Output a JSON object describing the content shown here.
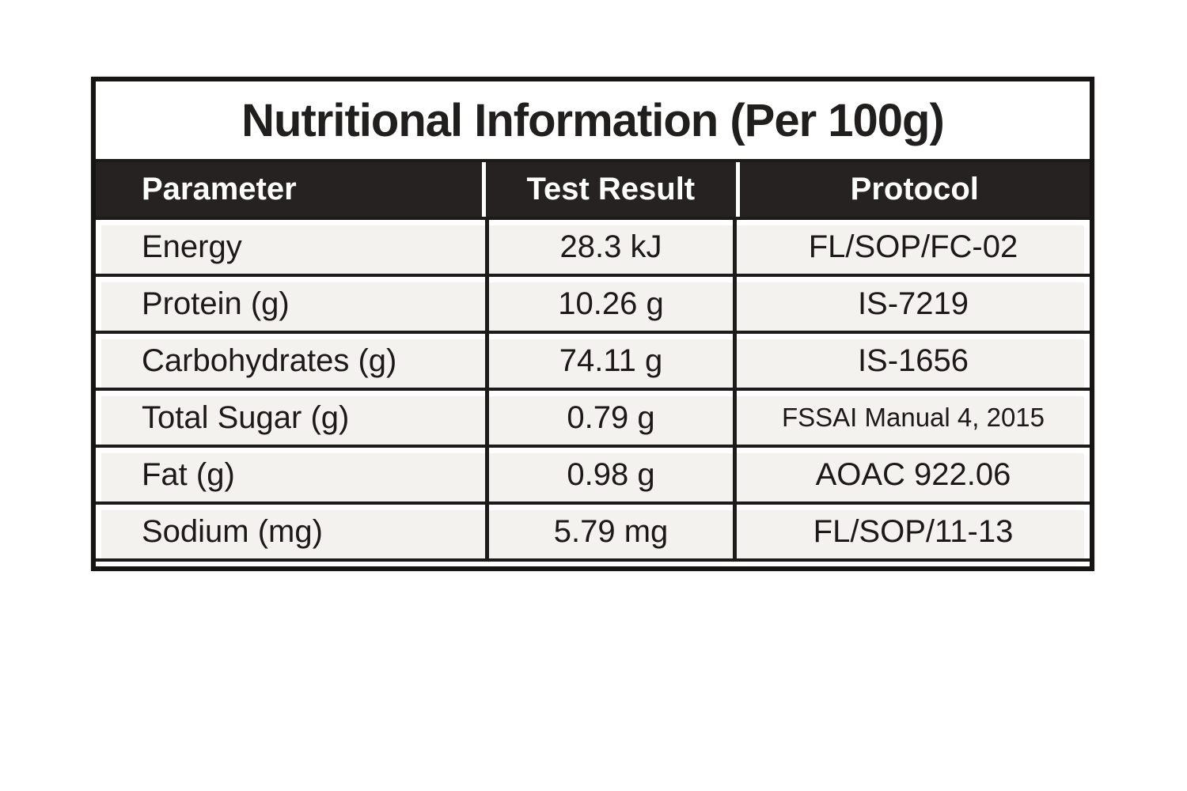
{
  "title": "Nutritional Information (Per 100g)",
  "table": {
    "headers": [
      "Parameter",
      "Test Result",
      "Protocol"
    ],
    "rows": [
      {
        "parameter": "Energy",
        "result": "28.3 kJ",
        "protocol": "FL/SOP/FC-02"
      },
      {
        "parameter": "Protein (g)",
        "result": "10.26 g",
        "protocol": "IS-7219"
      },
      {
        "parameter": "Carbohydrates (g)",
        "result": "74.11 g",
        "protocol": "IS-1656"
      },
      {
        "parameter": "Total Sugar (g)",
        "result": "0.79 g",
        "protocol": "FSSAI Manual 4, 2015"
      },
      {
        "parameter": "Fat (g)",
        "result": "0.98 g",
        "protocol": "AOAC 922.06"
      },
      {
        "parameter": "Sodium (mg)",
        "result": "5.79 mg",
        "protocol": "FL/SOP/11-13"
      }
    ]
  },
  "colors": {
    "header_background": "#262222",
    "header_text": "#ffffff",
    "row_background": "#f4f2ee",
    "border": "#1d1a1a",
    "body_text": "#1c1918",
    "page_background": "#ffffff"
  }
}
